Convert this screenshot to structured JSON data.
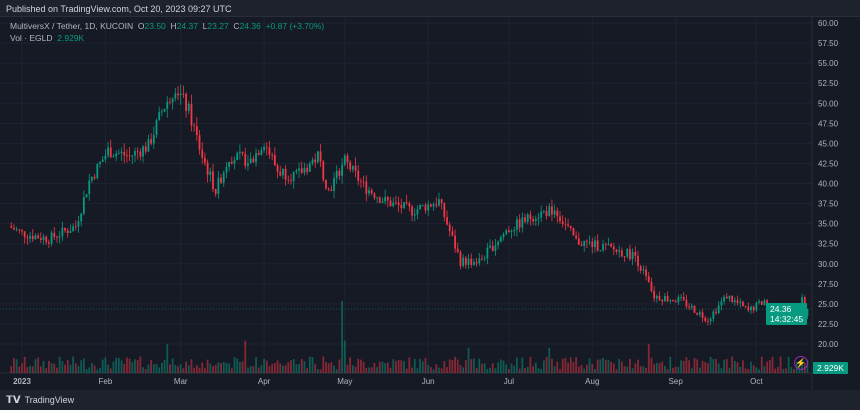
{
  "header": {
    "published": "Published on TradingView.com, Oct 20, 2023 09:27 UTC"
  },
  "legend": {
    "symbol": "MultiversX / Tether, 1D, KUCOIN",
    "o_label": "O",
    "o": "23.50",
    "h_label": "H",
    "h": "24.37",
    "l_label": "L",
    "l": "23.27",
    "c_label": "C",
    "c": "24.36",
    "change": "+0.87 (+3.70%)",
    "vol_label": "Vol · EGLD",
    "vol": "2.929K"
  },
  "price_axis": [
    "60.00",
    "57.50",
    "55.00",
    "52.50",
    "50.00",
    "47.50",
    "45.00",
    "42.50",
    "40.00",
    "37.50",
    "35.00",
    "32.50",
    "30.00",
    "27.50",
    "25.00",
    "22.50",
    "20.00"
  ],
  "time_axis": [
    {
      "label": "2023",
      "day": 0
    },
    {
      "label": "Feb",
      "day": 31
    },
    {
      "label": "Mar",
      "day": 59
    },
    {
      "label": "Apr",
      "day": 90
    },
    {
      "label": "May",
      "day": 120
    },
    {
      "label": "Jun",
      "day": 151
    },
    {
      "label": "Jul",
      "day": 181
    },
    {
      "label": "Aug",
      "day": 212
    },
    {
      "label": "Sep",
      "day": 243
    },
    {
      "label": "Oct",
      "day": 273
    }
  ],
  "last_price": {
    "price": "24.36",
    "countdown": "14:32:45"
  },
  "last_volume": "2.929K",
  "colors": {
    "up": "#089981",
    "down": "#f23645"
  },
  "chart_data": {
    "type": "candlestick",
    "x_start": "2022-12-27",
    "x_end": "2023-10-20",
    "ylim": [
      18,
      61
    ],
    "close_anchors": [
      [
        -5,
        34.7
      ],
      [
        0,
        33.8
      ],
      [
        10,
        33.1
      ],
      [
        20,
        34.7
      ],
      [
        25,
        40.3
      ],
      [
        32,
        44.1
      ],
      [
        40,
        43.4
      ],
      [
        47,
        44.7
      ],
      [
        52,
        49
      ],
      [
        57,
        52.2
      ],
      [
        62,
        49
      ],
      [
        67,
        43.4
      ],
      [
        72,
        39.1
      ],
      [
        77,
        43.4
      ],
      [
        85,
        42.8
      ],
      [
        90,
        45.3
      ],
      [
        95,
        41.6
      ],
      [
        102,
        40.9
      ],
      [
        110,
        43.4
      ],
      [
        114,
        39.1
      ],
      [
        120,
        42.8
      ],
      [
        127,
        39.7
      ],
      [
        135,
        37.8
      ],
      [
        145,
        36.6
      ],
      [
        155,
        37.8
      ],
      [
        163,
        30.3
      ],
      [
        170,
        30.3
      ],
      [
        180,
        34.1
      ],
      [
        190,
        36
      ],
      [
        198,
        36.8
      ],
      [
        206,
        32.8
      ],
      [
        215,
        32.2
      ],
      [
        228,
        31
      ],
      [
        235,
        26
      ],
      [
        245,
        25.4
      ],
      [
        255,
        23.1
      ],
      [
        262,
        26
      ],
      [
        270,
        24.1
      ],
      [
        276,
        25.4
      ],
      [
        285,
        23.1
      ],
      [
        290,
        25.4
      ],
      [
        292,
        24.36
      ]
    ],
    "volume_spikes": [
      [
        119,
        1.0
      ],
      [
        120,
        0.45
      ],
      [
        166,
        0.35
      ],
      [
        196,
        0.35
      ],
      [
        233,
        0.4
      ],
      [
        83,
        0.45
      ],
      [
        54,
        0.4
      ]
    ]
  },
  "footer": {
    "brand": "TradingView"
  }
}
